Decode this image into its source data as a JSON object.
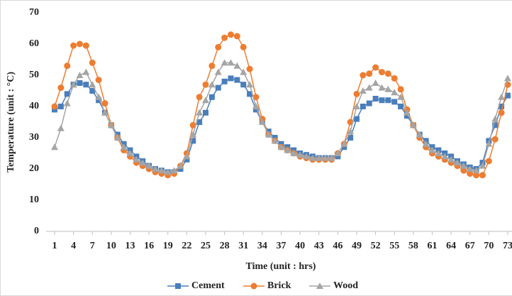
{
  "chart_data": {
    "type": "line",
    "y_label": "Temperature (unit : °C)",
    "x_label": "Time (unit : hrs)",
    "x": [
      1,
      2,
      3,
      4,
      5,
      6,
      7,
      8,
      9,
      10,
      11,
      12,
      13,
      14,
      15,
      16,
      17,
      18,
      19,
      20,
      21,
      22,
      23,
      24,
      25,
      26,
      27,
      28,
      29,
      30,
      31,
      32,
      33,
      34,
      35,
      36,
      37,
      38,
      39,
      40,
      41,
      42,
      43,
      44,
      45,
      46,
      47,
      48,
      49,
      50,
      51,
      52,
      53,
      54,
      55,
      56,
      57,
      58,
      59,
      60,
      61,
      62,
      63,
      64,
      65,
      66,
      67,
      68,
      69,
      70,
      71,
      72,
      73
    ],
    "series": [
      {
        "name": "Cement",
        "color": "#4a7ebb",
        "marker": "square",
        "values": [
          39,
          40,
          44,
          47,
          47.5,
          47,
          45,
          42,
          38,
          34,
          31,
          28,
          26,
          24,
          22.5,
          21,
          20,
          19.5,
          19,
          19,
          20,
          23,
          29,
          35,
          38,
          43,
          46,
          48,
          49,
          48.5,
          47,
          44,
          39,
          35,
          32,
          30,
          28,
          27,
          26,
          25,
          24.5,
          24,
          23.5,
          23.5,
          23.5,
          24,
          27,
          30,
          36,
          40,
          41,
          42.5,
          42,
          42,
          41.5,
          40,
          37,
          34,
          31,
          29,
          27,
          26,
          25,
          24,
          22.5,
          21.5,
          20.5,
          20,
          22,
          29,
          34,
          40,
          43.5
        ]
      },
      {
        "name": "Brick",
        "color": "#ed7d31",
        "marker": "circle",
        "values": [
          40,
          46,
          53,
          59.5,
          60,
          59.5,
          54,
          48.5,
          41,
          34,
          30,
          26,
          24,
          22,
          21,
          20,
          19,
          18.5,
          18,
          18.5,
          21,
          25,
          34,
          43,
          47,
          53,
          59,
          62,
          63,
          62.5,
          59,
          52,
          43,
          36,
          31,
          29,
          27,
          26,
          25,
          24,
          23.5,
          23,
          23,
          23,
          23,
          25,
          28,
          35,
          44,
          50,
          50.5,
          52.5,
          51,
          50.5,
          49,
          45.5,
          39,
          34,
          30,
          27,
          25,
          24,
          23,
          22,
          21,
          19.5,
          18.5,
          18,
          18,
          22.5,
          29.5,
          38,
          47
        ]
      },
      {
        "name": "Wood",
        "color": "#a5a5a5",
        "marker": "triangle",
        "values": [
          27,
          33,
          41,
          47,
          50,
          51,
          47,
          43,
          38,
          34,
          30,
          27,
          25,
          23,
          22,
          21,
          20,
          19.5,
          19,
          19.5,
          21,
          24,
          31,
          38,
          42,
          47,
          51,
          54,
          54,
          53,
          51,
          47,
          40,
          35,
          31,
          29,
          27,
          26,
          25,
          24.5,
          24,
          23.5,
          23.5,
          23.5,
          23.5,
          25,
          28,
          32,
          40,
          45,
          46,
          47.5,
          46,
          45.5,
          44.5,
          43,
          38,
          34,
          31,
          28,
          26,
          25,
          24,
          23,
          22,
          21,
          20,
          19.5,
          21,
          28,
          36,
          43,
          49
        ]
      }
    ],
    "xlim": [
      -0.35,
      73.68
    ],
    "xticks": [
      1,
      4,
      7,
      10,
      13,
      16,
      19,
      22,
      25,
      28,
      31,
      34,
      37,
      40,
      43,
      46,
      49,
      52,
      55,
      58,
      61,
      64,
      67,
      70,
      73
    ],
    "ylim": [
      0,
      70
    ],
    "yticks": [
      0,
      10,
      20,
      30,
      40,
      50,
      60,
      70
    ],
    "grid": false,
    "legend": "bottom"
  }
}
